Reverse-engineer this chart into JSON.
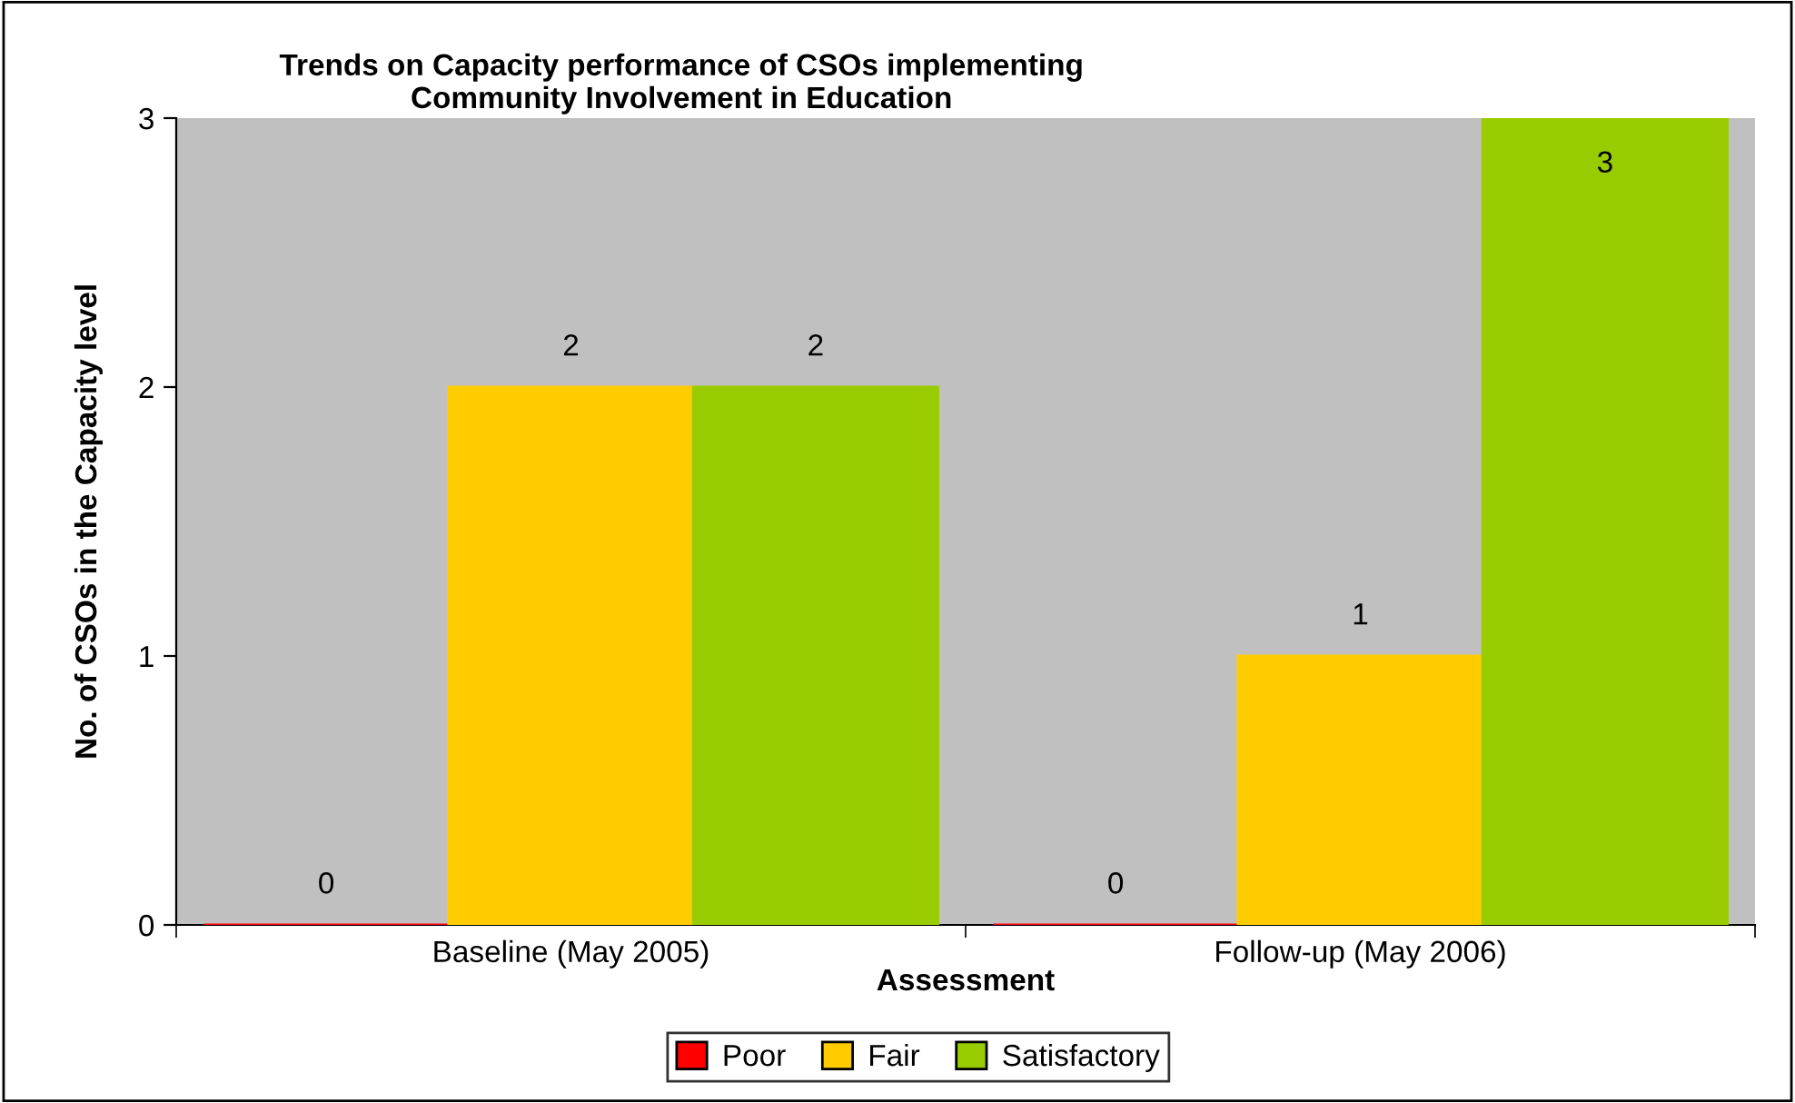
{
  "chart_data": {
    "type": "bar",
    "title": "Trends on Capacity performance of CSOs implementing\nCommunity Involvement in Education",
    "xlabel": "Assessment",
    "ylabel": "No. of CSOs in the Capacity level",
    "categories": [
      "Baseline (May 2005)",
      "Follow-up (May 2006)"
    ],
    "series": [
      {
        "name": "Poor",
        "color": "#ff0000",
        "values": [
          0,
          0
        ]
      },
      {
        "name": "Fair",
        "color": "#ffcc00",
        "values": [
          2,
          1
        ]
      },
      {
        "name": "Satisfactory",
        "color": "#99cc00",
        "values": [
          2,
          3
        ]
      }
    ],
    "ylim": [
      0,
      3
    ],
    "yticks": [
      0,
      1,
      2,
      3
    ],
    "data_labels": true,
    "grid": false,
    "legend": "bottom"
  }
}
